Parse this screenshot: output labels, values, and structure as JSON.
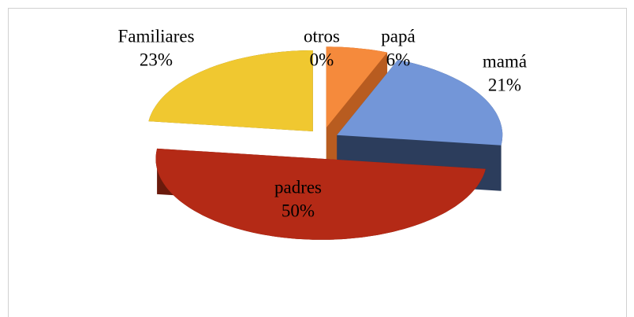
{
  "chart_data": {
    "type": "pie",
    "categories": [
      "papá",
      "mamá",
      "padres",
      "Familiares",
      "otros"
    ],
    "values": [
      6,
      21,
      50,
      23,
      0
    ],
    "value_labels": [
      "6%",
      "21%",
      "50%",
      "23%",
      "0%"
    ],
    "colors": [
      "#f58a3c",
      "#7396d8",
      "#b42a16",
      "#f0c830",
      "#9bbb59"
    ],
    "side_colors": [
      "#b85c20",
      "#2c3d5c",
      "#6a1a0c",
      "#6b5a14",
      "#5f7530"
    ]
  }
}
